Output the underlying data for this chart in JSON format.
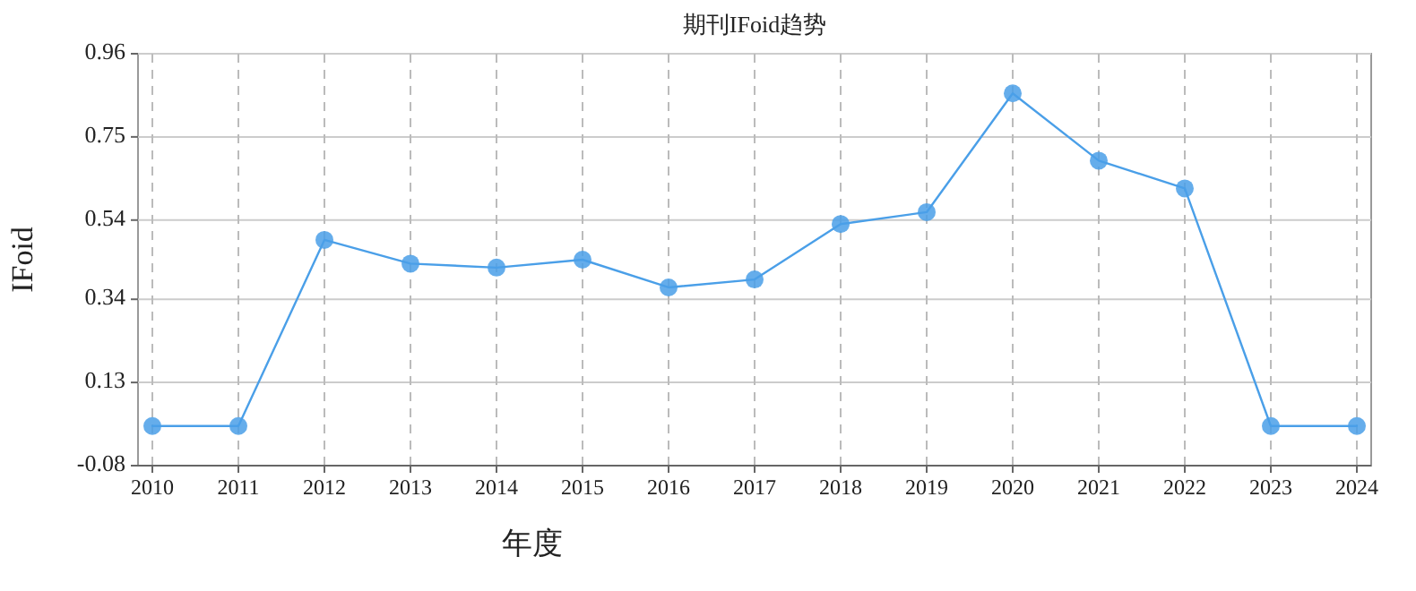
{
  "chart_data": {
    "type": "line",
    "title": "期刊IFoid趋势",
    "xlabel": "年度",
    "ylabel": "IFoid",
    "categories": [
      "2010",
      "2011",
      "2012",
      "2013",
      "2014",
      "2015",
      "2016",
      "2017",
      "2018",
      "2019",
      "2020",
      "2021",
      "2022",
      "2023",
      "2024"
    ],
    "series": [
      {
        "color": "#4a9fe8",
        "values": [
          0.02,
          0.02,
          0.49,
          0.43,
          0.42,
          0.44,
          0.37,
          0.39,
          0.53,
          0.56,
          0.86,
          0.69,
          0.62,
          0.02,
          0.02
        ]
      }
    ],
    "ylim": [
      -0.08,
      0.96
    ],
    "yticks": [
      -0.08,
      0.13,
      0.34,
      0.54,
      0.75,
      0.96
    ],
    "grid": true,
    "marker": "circle",
    "line_style": "solid"
  }
}
